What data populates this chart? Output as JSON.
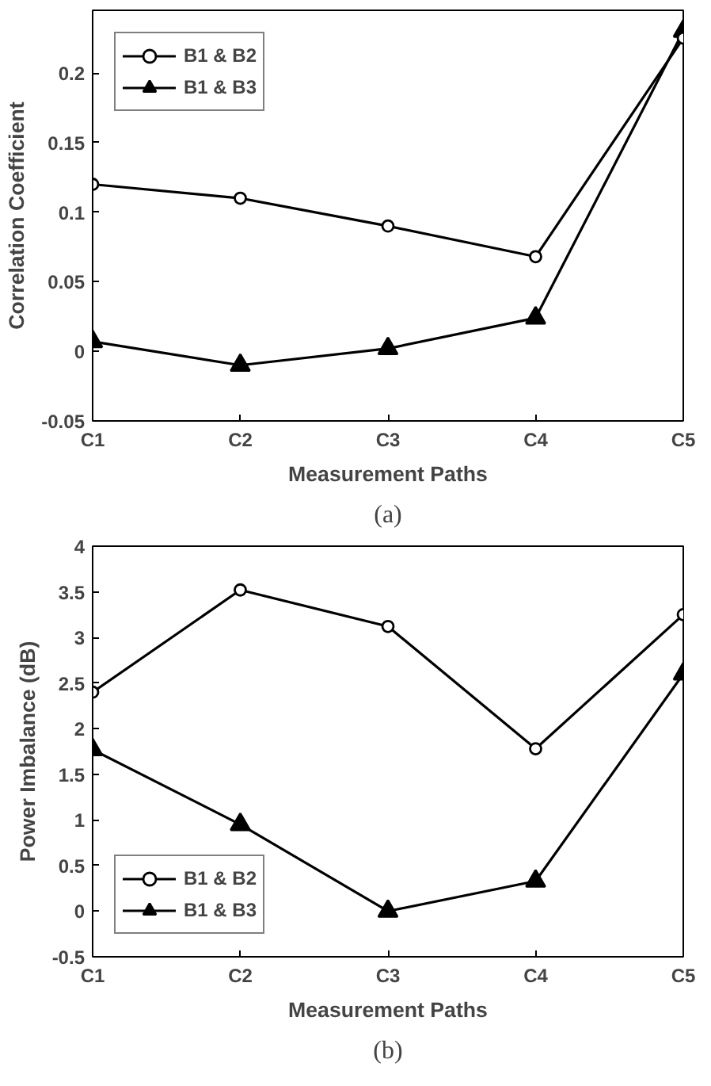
{
  "chart_data": [
    {
      "type": "line",
      "xlabel": "Measurement Paths",
      "ylabel": "Correlation Coefficient",
      "categories": [
        "C1",
        "C2",
        "C3",
        "C4",
        "C5"
      ],
      "ylim": [
        -0.05,
        0.245
      ],
      "yticks": [
        -0.05,
        0,
        0.05,
        0.1,
        0.15,
        0.2
      ],
      "legend": "top left",
      "grid": false,
      "line_style": "solid",
      "annotations": [
        "(a)"
      ],
      "series": [
        {
          "name": "B1 & B2",
          "color": "#000000",
          "marker": "circle",
          "values": [
            0.12,
            0.11,
            0.09,
            0.068,
            0.225
          ]
        },
        {
          "name": "B1 & B3",
          "color": "#000000",
          "marker": "triangle",
          "values": [
            0.007,
            -0.01,
            0.002,
            0.024,
            0.23
          ]
        }
      ]
    },
    {
      "type": "line",
      "xlabel": "Measurement Paths",
      "ylabel": "Power Imbalance (dB)",
      "categories": [
        "C1",
        "C2",
        "C3",
        "C4",
        "C5"
      ],
      "ylim": [
        -0.5,
        4
      ],
      "yticks": [
        -0.5,
        0,
        0.5,
        1,
        1.5,
        2,
        2.5,
        3,
        3.5,
        4
      ],
      "legend": "bottom left",
      "grid": false,
      "line_style": "solid",
      "annotations": [
        "(b)"
      ],
      "series": [
        {
          "name": "B1 & B2",
          "color": "#000000",
          "marker": "circle",
          "values": [
            2.4,
            3.52,
            3.12,
            1.78,
            3.25
          ]
        },
        {
          "name": "B1 & B3",
          "color": "#000000",
          "marker": "triangle",
          "values": [
            1.77,
            0.95,
            0.0,
            0.33,
            2.6
          ]
        }
      ]
    }
  ]
}
